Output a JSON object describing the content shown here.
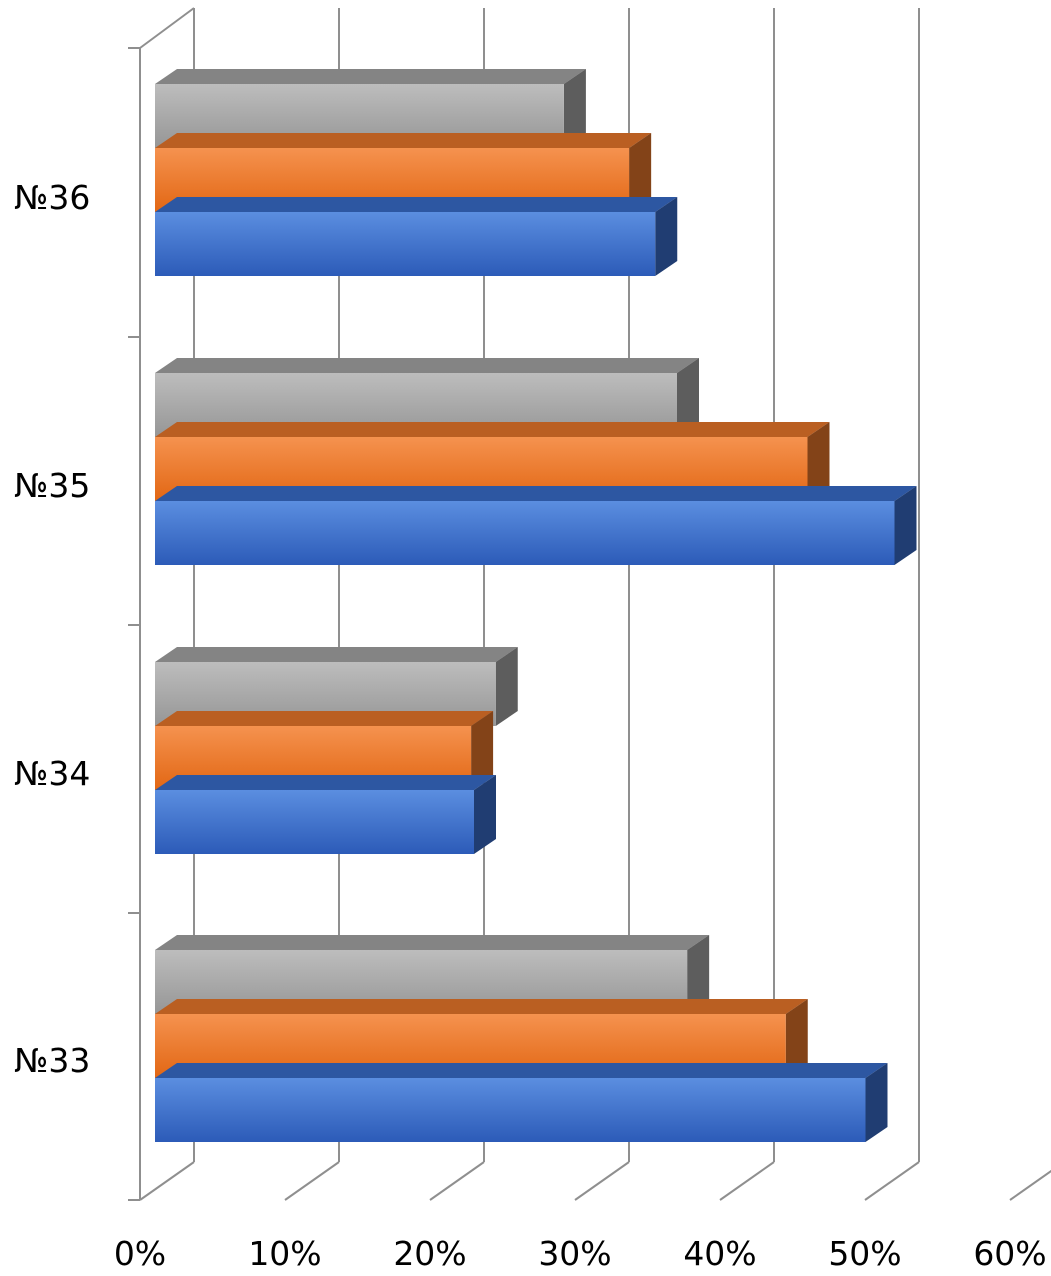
{
  "chart_data": {
    "type": "bar",
    "orientation": "horizontal",
    "three_d": true,
    "categories": [
      "№33",
      "№34",
      "№35",
      "№36"
    ],
    "series": [
      {
        "color": "#3a6fd0",
        "values": [
          0.49,
          0.22,
          0.51,
          0.345
        ]
      },
      {
        "color": "#ee7a2b",
        "values": [
          0.435,
          0.218,
          0.45,
          0.327
        ]
      },
      {
        "color": "#a9a9a9",
        "values": [
          0.367,
          0.235,
          0.36,
          0.282
        ]
      }
    ],
    "x_ticks": [
      "0%",
      "10%",
      "20%",
      "30%",
      "40%",
      "50%",
      "60%"
    ],
    "xlim": [
      0,
      0.6
    ],
    "grid": true,
    "legend": "none"
  }
}
